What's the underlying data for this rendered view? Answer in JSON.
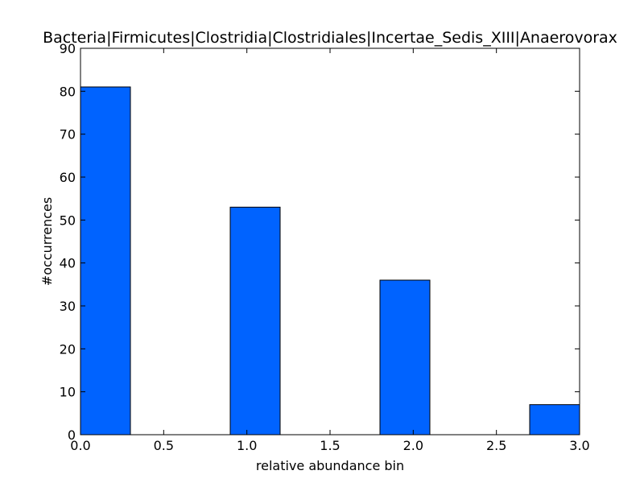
{
  "chart_data": {
    "type": "bar",
    "title": "Bacteria|Firmicutes|Clostridia|Clostridiales|Incertae_Sedis_XIII|Anaerovorax",
    "xlabel": "relative abundance bin",
    "ylabel": "#occurrences",
    "xlim": [
      0,
      3
    ],
    "ylim": [
      0,
      90
    ],
    "xticks": [
      "0.0",
      "0.5",
      "1.0",
      "1.5",
      "2.0",
      "2.5",
      "3.0"
    ],
    "yticks": [
      "0",
      "10",
      "20",
      "30",
      "40",
      "50",
      "60",
      "70",
      "80",
      "90"
    ],
    "bars": [
      {
        "x0": 0.0,
        "x1": 0.3,
        "value": 81
      },
      {
        "x0": 0.9,
        "x1": 1.2,
        "value": 53
      },
      {
        "x0": 1.8,
        "x1": 2.1,
        "value": 36
      },
      {
        "x0": 2.7,
        "x1": 3.0,
        "value": 7
      }
    ],
    "bar_color": "#0063ff",
    "grid": false
  }
}
